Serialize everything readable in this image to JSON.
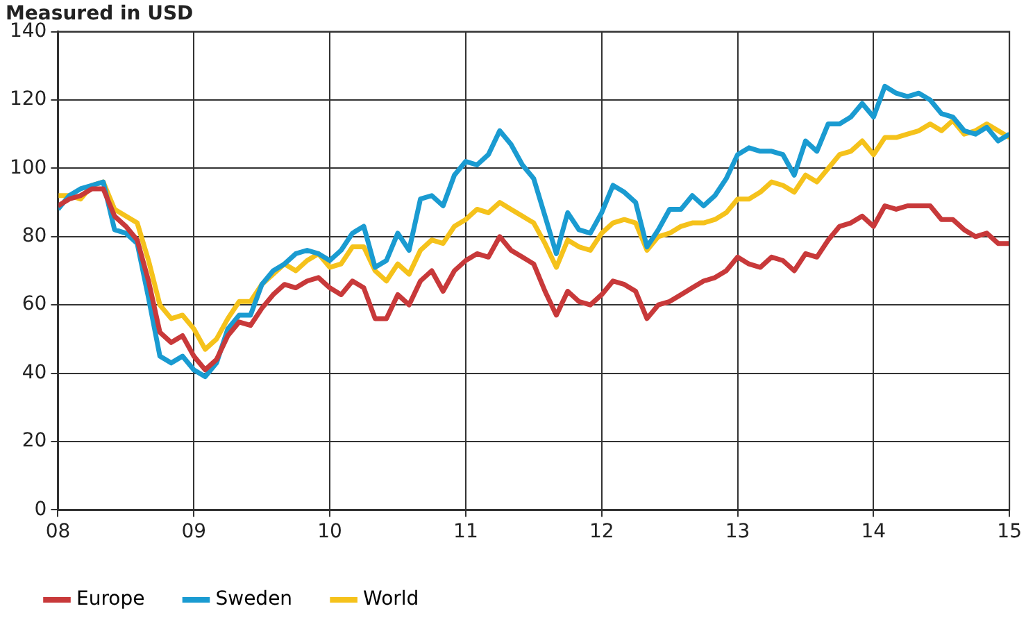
{
  "chart_data": {
    "type": "line",
    "ylabel": "Measured in USD",
    "x": [
      "2008-01",
      "2008-02",
      "2008-03",
      "2008-04",
      "2008-05",
      "2008-06",
      "2008-07",
      "2008-08",
      "2008-09",
      "2008-10",
      "2008-11",
      "2008-12",
      "2009-01",
      "2009-02",
      "2009-03",
      "2009-04",
      "2009-05",
      "2009-06",
      "2009-07",
      "2009-08",
      "2009-09",
      "2009-10",
      "2009-11",
      "2009-12",
      "2010-01",
      "2010-02",
      "2010-03",
      "2010-04",
      "2010-05",
      "2010-06",
      "2010-07",
      "2010-08",
      "2010-09",
      "2010-10",
      "2010-11",
      "2010-12",
      "2011-01",
      "2011-02",
      "2011-03",
      "2011-04",
      "2011-05",
      "2011-06",
      "2011-07",
      "2011-08",
      "2011-09",
      "2011-10",
      "2011-11",
      "2011-12",
      "2012-01",
      "2012-02",
      "2012-03",
      "2012-04",
      "2012-05",
      "2012-06",
      "2012-07",
      "2012-08",
      "2012-09",
      "2012-10",
      "2012-11",
      "2012-12",
      "2013-01",
      "2013-02",
      "2013-03",
      "2013-04",
      "2013-05",
      "2013-06",
      "2013-07",
      "2013-08",
      "2013-09",
      "2013-10",
      "2013-11",
      "2013-12",
      "2014-01",
      "2014-02",
      "2014-03",
      "2014-04",
      "2014-05",
      "2014-06",
      "2014-07",
      "2014-08",
      "2014-09",
      "2014-10",
      "2014-11",
      "2014-12",
      "2015-01"
    ],
    "series": [
      {
        "name": "Europe",
        "color": "#c8393a",
        "values": [
          89,
          91,
          92,
          94,
          94,
          86,
          83,
          79,
          67,
          52,
          49,
          51,
          45,
          41,
          44,
          51,
          55,
          54,
          59,
          63,
          66,
          65,
          67,
          68,
          65,
          63,
          67,
          65,
          56,
          56,
          63,
          60,
          67,
          70,
          64,
          70,
          73,
          75,
          74,
          80,
          76,
          74,
          72,
          64,
          57,
          64,
          61,
          60,
          63,
          67,
          66,
          64,
          56,
          60,
          61,
          63,
          65,
          67,
          68,
          70,
          74,
          72,
          71,
          74,
          73,
          70,
          75,
          74,
          79,
          83,
          84,
          86,
          83,
          89,
          88,
          89,
          89,
          89,
          85,
          85,
          82,
          80,
          81,
          78,
          78
        ]
      },
      {
        "name": "Sweden",
        "color": "#1a9bd1",
        "values": [
          88,
          92,
          94,
          95,
          96,
          82,
          81,
          78,
          62,
          45,
          43,
          45,
          41,
          39,
          43,
          53,
          57,
          57,
          66,
          70,
          72,
          75,
          76,
          75,
          73,
          76,
          81,
          83,
          71,
          73,
          81,
          76,
          91,
          92,
          89,
          98,
          102,
          101,
          104,
          111,
          107,
          101,
          97,
          86,
          75,
          87,
          82,
          81,
          87,
          95,
          93,
          90,
          77,
          82,
          88,
          88,
          92,
          89,
          92,
          97,
          104,
          106,
          105,
          105,
          104,
          98,
          108,
          105,
          113,
          113,
          115,
          119,
          115,
          124,
          122,
          121,
          122,
          120,
          116,
          115,
          111,
          110,
          112,
          108,
          110
        ]
      },
      {
        "name": "World",
        "color": "#f5c21b",
        "values": [
          92,
          92,
          91,
          95,
          96,
          88,
          86,
          84,
          73,
          60,
          56,
          57,
          53,
          47,
          50,
          56,
          61,
          61,
          66,
          69,
          72,
          70,
          73,
          75,
          71,
          72,
          77,
          77,
          70,
          67,
          72,
          69,
          76,
          79,
          78,
          83,
          85,
          88,
          87,
          90,
          88,
          86,
          84,
          78,
          71,
          79,
          77,
          76,
          81,
          84,
          85,
          84,
          76,
          80,
          81,
          83,
          84,
          84,
          85,
          87,
          91,
          91,
          93,
          96,
          95,
          93,
          98,
          96,
          100,
          104,
          105,
          108,
          104,
          109,
          109,
          110,
          111,
          113,
          111,
          114,
          110,
          111,
          113,
          111,
          109
        ]
      }
    ],
    "xlim": [
      "2008-01",
      "2015-01"
    ],
    "xticks": [
      {
        "value": "2008-01",
        "label": "08"
      },
      {
        "value": "2009-01",
        "label": "09"
      },
      {
        "value": "2010-01",
        "label": "10"
      },
      {
        "value": "2011-01",
        "label": "11"
      },
      {
        "value": "2012-01",
        "label": "12"
      },
      {
        "value": "2013-01",
        "label": "13"
      },
      {
        "value": "2014-01",
        "label": "14"
      },
      {
        "value": "2015-01",
        "label": "15"
      }
    ],
    "ylim": [
      0,
      140
    ],
    "yticks": [
      0,
      20,
      40,
      60,
      80,
      100,
      120,
      140
    ],
    "grid": true,
    "legend": "bottom",
    "marker": "none",
    "line_style": "solid"
  }
}
